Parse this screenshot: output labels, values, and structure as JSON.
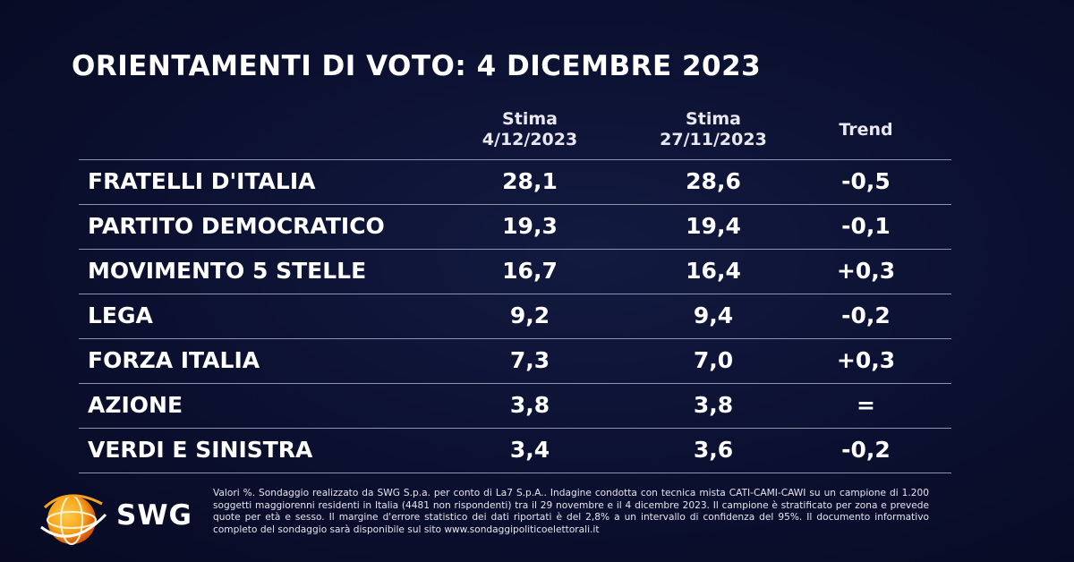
{
  "title": "ORIENTAMENTI DI VOTO: 4 DICEMBRE 2023",
  "chart_data": {
    "type": "table",
    "title": "ORIENTAMENTI DI VOTO: 4 DICEMBRE 2023",
    "columns": [
      {
        "line1": "Stima",
        "line2": "4/12/2023"
      },
      {
        "line1": "Stima",
        "line2": "27/11/2023"
      },
      {
        "line1": "Trend",
        "line2": ""
      }
    ],
    "rows": [
      {
        "party": "FRATELLI D'ITALIA",
        "stima_4_12": "28,1",
        "stima_27_11": "28,6",
        "trend": "-0,5"
      },
      {
        "party": "PARTITO DEMOCRATICO",
        "stima_4_12": "19,3",
        "stima_27_11": "19,4",
        "trend": "-0,1"
      },
      {
        "party": "MOVIMENTO 5 STELLE",
        "stima_4_12": "16,7",
        "stima_27_11": "16,4",
        "trend": "+0,3"
      },
      {
        "party": "LEGA",
        "stima_4_12": "9,2",
        "stima_27_11": "9,4",
        "trend": "-0,2"
      },
      {
        "party": "FORZA ITALIA",
        "stima_4_12": "7,3",
        "stima_27_11": "7,0",
        "trend": "+0,3"
      },
      {
        "party": "AZIONE",
        "stima_4_12": "3,8",
        "stima_27_11": "3,8",
        "trend": "="
      },
      {
        "party": "VERDI E SINISTRA",
        "stima_4_12": "3,4",
        "stima_27_11": "3,6",
        "trend": "-0,2"
      }
    ]
  },
  "logo": {
    "text": "SWG",
    "icon": "swg-globe-icon",
    "colors": [
      "#f7a51c",
      "#e8590c"
    ]
  },
  "footnote": "Valori %. Sondaggio realizzato da SWG S.p.a. per conto di La7 S.p.A.. Indagine condotta con tecnica mista CATI-CAMI-CAWI su un campione di 1.200 soggetti maggiorenni residenti in Italia (4481 non rispondenti) tra il 29 novembre e il 4 dicembre 2023. Il campione è stratificato per zona e prevede quote per età e sesso. Il margine d'errore statistico dei dati riportati è del 2,8% a un intervallo di confidenza del 95%. Il documento informativo completo del sondaggio sarà disponibile sul sito www.sondaggipoliticoelettorali.it",
  "colors": {
    "background": "#0b1030",
    "text": "#ffffff",
    "divider": "#8e93b0"
  }
}
